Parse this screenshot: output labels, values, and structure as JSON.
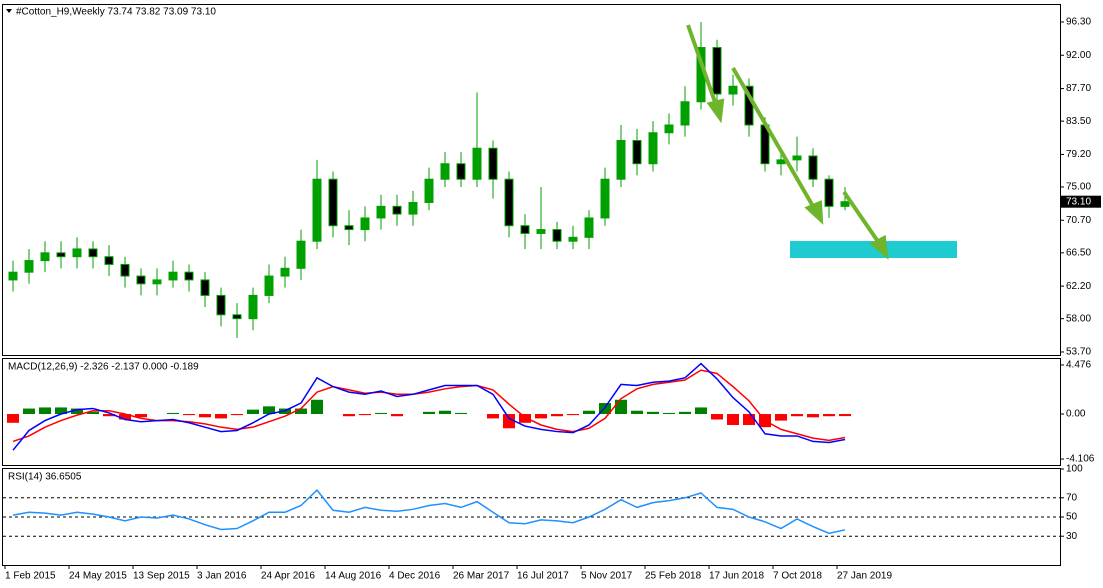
{
  "chart_data": [
    {
      "type": "candlestick",
      "title": "#Cotton_H9,Weekly  73.74 73.82 73.09 73.10",
      "categories": [
        "1 Feb 2015",
        null,
        null,
        null,
        "24 May 2015",
        null,
        null,
        null,
        "13 Sep 2015",
        null,
        null,
        null,
        "3 Jan 2016",
        null,
        null,
        null,
        "24 Apr 2016",
        null,
        null,
        null,
        "14 Aug 2016",
        null,
        null,
        null,
        "4 Dec 2016",
        null,
        null,
        null,
        "26 Mar 2017",
        null,
        null,
        null,
        "16 Jul 2017",
        null,
        null,
        null,
        "5 Nov 2017",
        null,
        null,
        null,
        "25 Feb 2018",
        null,
        null,
        null,
        "17 Jun 2018",
        null,
        null,
        null,
        "7 Oct 2018",
        null,
        null,
        null,
        "27 Jan 2019"
      ],
      "open": [
        63,
        64,
        65.5,
        66.5,
        66,
        67,
        66,
        65,
        63.5,
        62.5,
        63,
        64,
        63,
        61,
        58.5,
        58,
        61,
        63.5,
        64.5,
        68,
        76,
        70,
        69.5,
        71,
        72.5,
        71.5,
        73,
        76,
        78,
        76,
        80,
        76,
        70,
        69,
        69.5,
        68,
        68.5,
        71,
        76,
        81,
        78,
        82,
        83,
        86,
        93,
        87,
        88,
        83,
        78,
        78.5,
        79,
        76,
        72.5
      ],
      "high": [
        65.5,
        67,
        68,
        68,
        68.5,
        68,
        67.5,
        66,
        64.5,
        64.5,
        65.5,
        65,
        64,
        62,
        60,
        62,
        65,
        66,
        69.5,
        78.5,
        77,
        72,
        72.5,
        74,
        74,
        74.5,
        77.5,
        79.5,
        79.5,
        87.2,
        81,
        77,
        71.5,
        75,
        70.5,
        70,
        72,
        77.5,
        83,
        82.5,
        83.5,
        84.5,
        88,
        96.3,
        94,
        89.5,
        89,
        84,
        80,
        81.5,
        80,
        76.5,
        75
      ],
      "low": [
        61.5,
        62.5,
        64,
        64.5,
        64.5,
        64.5,
        63.5,
        62,
        61,
        61,
        62,
        61.5,
        59.5,
        57,
        55.5,
        56.5,
        60,
        62,
        63,
        67,
        68.5,
        67.5,
        68,
        69.5,
        70,
        70,
        72,
        75,
        75,
        75,
        73.5,
        68.5,
        67,
        67,
        67,
        67,
        67,
        70,
        75,
        76.5,
        77,
        80.5,
        81.5,
        85,
        85,
        85.5,
        81.5,
        77,
        76.5,
        77,
        75,
        71,
        72
      ],
      "close": [
        64,
        65.5,
        66.5,
        66,
        67,
        66,
        65,
        63.5,
        62.5,
        63,
        64,
        63,
        61,
        58.5,
        58,
        61,
        63.5,
        64.5,
        68,
        76,
        70,
        69.5,
        71,
        72.5,
        71.5,
        73,
        76,
        78,
        76,
        80,
        76,
        70,
        69,
        69.5,
        68,
        68.5,
        71,
        76,
        81,
        78,
        82,
        83,
        86,
        93,
        87,
        88,
        83,
        78,
        78.5,
        79,
        76,
        72.5,
        73.1
      ],
      "up_color": "#00a000",
      "down_color": "#000000",
      "wick_color": "#00a000",
      "last_price": {
        "value": 73.1,
        "label": "73.10"
      },
      "ylim": [
        53.31,
        98.49
      ],
      "yticks": [
        {
          "value": 96.3,
          "label": "96.30"
        },
        {
          "value": 92,
          "label": "92.00"
        },
        {
          "value": 87.7,
          "label": "87.70"
        },
        {
          "value": 83.5,
          "label": "83.50"
        },
        {
          "value": 79.2,
          "label": "79.20"
        },
        {
          "value": 75,
          "label": "75.00"
        },
        {
          "value": 70.7,
          "label": "70.70"
        },
        {
          "value": 66.5,
          "label": "66.50"
        },
        {
          "value": 62.2,
          "label": "62.20"
        },
        {
          "value": 58,
          "label": "58.00"
        },
        {
          "value": 53.7,
          "label": "53.70"
        }
      ]
    },
    {
      "type": "macd",
      "title": "MACD(12,26,9) -2.326 -2.137 0.000 -0.189",
      "macd": [
        -3.3,
        -1.5,
        -0.6,
        0,
        0.4,
        0.5,
        0.1,
        -0.5,
        -0.7,
        -0.6,
        -0.5,
        -0.8,
        -1.2,
        -1.6,
        -1.5,
        -0.8,
        0,
        0.3,
        1,
        3.3,
        2.5,
        2,
        1.8,
        2.1,
        1.6,
        1.8,
        2.2,
        2.6,
        2.6,
        2.6,
        1.8,
        -0.4,
        -1.1,
        -1.4,
        -1.6,
        -1.7,
        -1,
        0.6,
        2.7,
        2.6,
        2.9,
        3,
        3.3,
        4.6,
        3.2,
        1.5,
        0.2,
        -1.8,
        -2,
        -2,
        -2.5,
        -2.6,
        -2.326
      ],
      "signal": [
        -2.5,
        -2,
        -1.2,
        -0.6,
        -0.1,
        0.3,
        0.3,
        0,
        -0.4,
        -0.6,
        -0.6,
        -0.7,
        -0.9,
        -1.2,
        -1.4,
        -1.2,
        -0.7,
        -0.2,
        0.5,
        2,
        2.5,
        2.2,
        1.9,
        2,
        1.8,
        1.8,
        2,
        2.3,
        2.5,
        2.6,
        2.2,
        0.9,
        -0.3,
        -1,
        -1.4,
        -1.6,
        -1.3,
        -0.4,
        1.4,
        2.3,
        2.7,
        2.9,
        3.1,
        4,
        3.7,
        2.5,
        1.2,
        -0.6,
        -1.4,
        -1.8,
        -2.2,
        -2.4,
        -2.137
      ],
      "histogram": [
        -0.8,
        0.5,
        0.6,
        0.6,
        0.5,
        0.2,
        -0.2,
        -0.5,
        -0.3,
        0,
        0.1,
        -0.1,
        -0.3,
        -0.4,
        -0.1,
        0.4,
        0.7,
        0.5,
        0.5,
        1.3,
        0,
        -0.2,
        -0.1,
        0.1,
        -0.2,
        0,
        0.2,
        0.3,
        0.1,
        0,
        -0.4,
        -1.3,
        -0.8,
        -0.4,
        -0.2,
        -0.1,
        0.3,
        1,
        1.3,
        0.3,
        0.2,
        0.1,
        0.2,
        0.6,
        -0.5,
        -1,
        -1,
        -1.2,
        -0.6,
        -0.2,
        -0.3,
        -0.2,
        -0.189
      ],
      "macd_color": "#0000ff",
      "signal_color": "#ff0000",
      "positive_color": "#008000",
      "negative_color": "#ff0000",
      "ylim": [
        -4.65,
        5.11
      ],
      "yticks": [
        4.476,
        {
          "value": 0,
          "label": "0.00"
        },
        -4.106
      ]
    },
    {
      "type": "rsi",
      "title": "RSI(14) 36.6505",
      "values": [
        52,
        55,
        54,
        52,
        55,
        53,
        50,
        46,
        50,
        49,
        52,
        48,
        42,
        37,
        38,
        46,
        55,
        55,
        62,
        78,
        57,
        55,
        60,
        57,
        56,
        58,
        62,
        64,
        60,
        66,
        55,
        44,
        43,
        47,
        46,
        44,
        50,
        58,
        68,
        60,
        65,
        67,
        70,
        75,
        60,
        58,
        50,
        45,
        38,
        48,
        40,
        33,
        36.65
      ],
      "color": "#1e90ff",
      "levels": [
        70,
        50,
        30
      ],
      "ylim": [
        0,
        100
      ],
      "yticks": [
        100,
        70,
        50,
        30
      ]
    }
  ]
}
